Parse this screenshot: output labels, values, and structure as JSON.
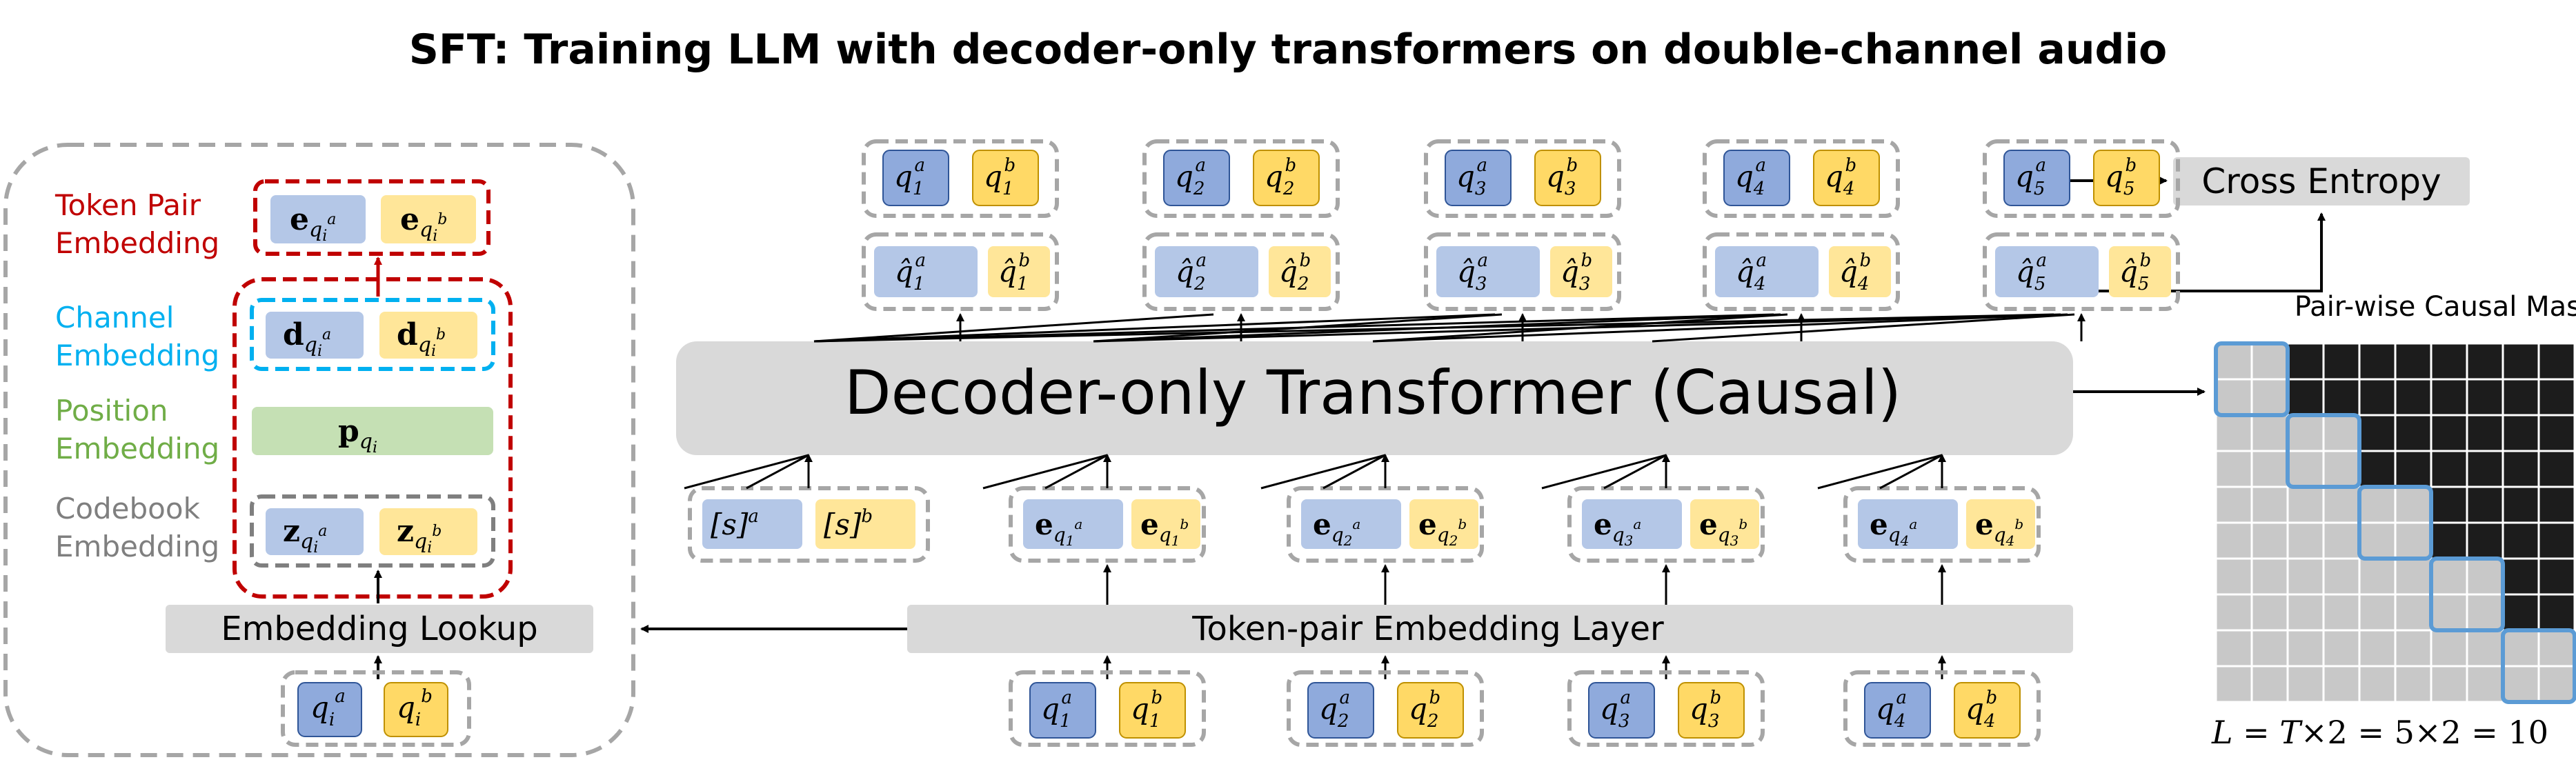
{
  "title": "SFT: Training LLM with decoder-only transformers on double-channel audio",
  "left_panel": {
    "labels": {
      "token_pair": [
        "Token Pair",
        "Embedding"
      ],
      "channel": [
        "Channel",
        "Embedding"
      ],
      "position": [
        "Position",
        "Embedding"
      ],
      "codebook": [
        "Codebook",
        "Embedding"
      ]
    },
    "embedding_lookup": "Embedding Lookup",
    "token_pair_row": {
      "a": "e",
      "a_sub": "q",
      "a_subsub": "i",
      "a_sup": "a",
      "b": "e",
      "b_sub": "q",
      "b_subsub": "i",
      "b_sup": "b"
    },
    "channel_row": {
      "a": "d",
      "b": "d"
    },
    "position_row": {
      "p": "p"
    },
    "codebook_row": {
      "a": "z",
      "b": "z"
    },
    "input_pair": {
      "a": "q",
      "b": "q",
      "sub": "i",
      "sup_a": "a",
      "sup_b": "b"
    }
  },
  "main": {
    "decoder_label": "Decoder-only Transformer (Causal)",
    "token_pair_layer_label": "Token-pair Embedding Layer",
    "cross_entropy_label": "Cross Entropy",
    "start_tokens": {
      "a": "[s]",
      "b": "[s]",
      "sup_a": "a",
      "sup_b": "b"
    },
    "columns": [
      {
        "index": "1"
      },
      {
        "index": "2"
      },
      {
        "index": "3"
      },
      {
        "index": "4"
      },
      {
        "index": "5"
      }
    ]
  },
  "mask": {
    "title": "Pair-wise Causal Mask",
    "formula": "L = T×2 = 5×2 = 10",
    "formula_parts": {
      "L": "L",
      "T": "T",
      "rest1": "×2 = 5×2 = 10"
    },
    "size": 10,
    "pairs": 5,
    "colors": {
      "visible": "#c8c8c8",
      "masked": "#1c1c1c",
      "pair_box": "#5b9bd5"
    }
  },
  "colors": {
    "blue": "#b4c7e7",
    "blue_dark": "#8faadc",
    "yellow": "#ffe699",
    "yellow_dark": "#ffd966",
    "green": "#c5e0b4",
    "grey_bar": "#d9d9d9",
    "red": "#c00000",
    "cyan": "#00b0f0",
    "grey_dash": "#7f7f7f",
    "label_red": "#c00000",
    "label_cyan": "#00b0f0",
    "label_green": "#70ad47",
    "label_grey": "#7f7f7f"
  }
}
